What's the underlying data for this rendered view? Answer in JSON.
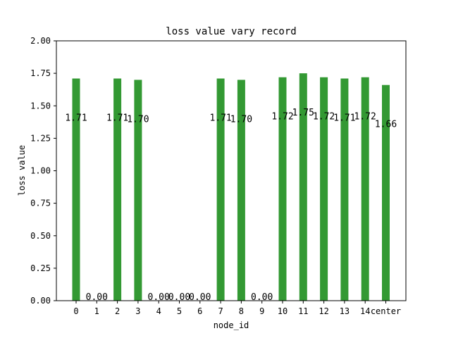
{
  "chart_data": {
    "type": "bar",
    "title": "loss value vary record",
    "xlabel": "node_id",
    "ylabel": "loss value",
    "categories": [
      "0",
      "1",
      "2",
      "3",
      "4",
      "5",
      "6",
      "7",
      "8",
      "9",
      "10",
      "11",
      "12",
      "13",
      "14",
      "center"
    ],
    "values": [
      1.71,
      0.0,
      1.71,
      1.7,
      0.0,
      0.0,
      0.0,
      1.71,
      1.7,
      0.0,
      1.72,
      1.75,
      1.72,
      1.71,
      1.72,
      1.66
    ],
    "data_labels": [
      "1.71",
      "0.00",
      "1.71",
      "1.70",
      "0.00",
      "0.00",
      "0.00",
      "1.71",
      "1.70",
      "0.00",
      "1.72",
      "1.75",
      "1.72",
      "1.71",
      "1.72",
      "1.66"
    ],
    "ylim": [
      0,
      2.0
    ],
    "yticks": [
      "0.00",
      "0.25",
      "0.50",
      "0.75",
      "1.00",
      "1.25",
      "1.50",
      "1.75",
      "2.00"
    ],
    "grid": false,
    "bar_color": "#339933"
  }
}
